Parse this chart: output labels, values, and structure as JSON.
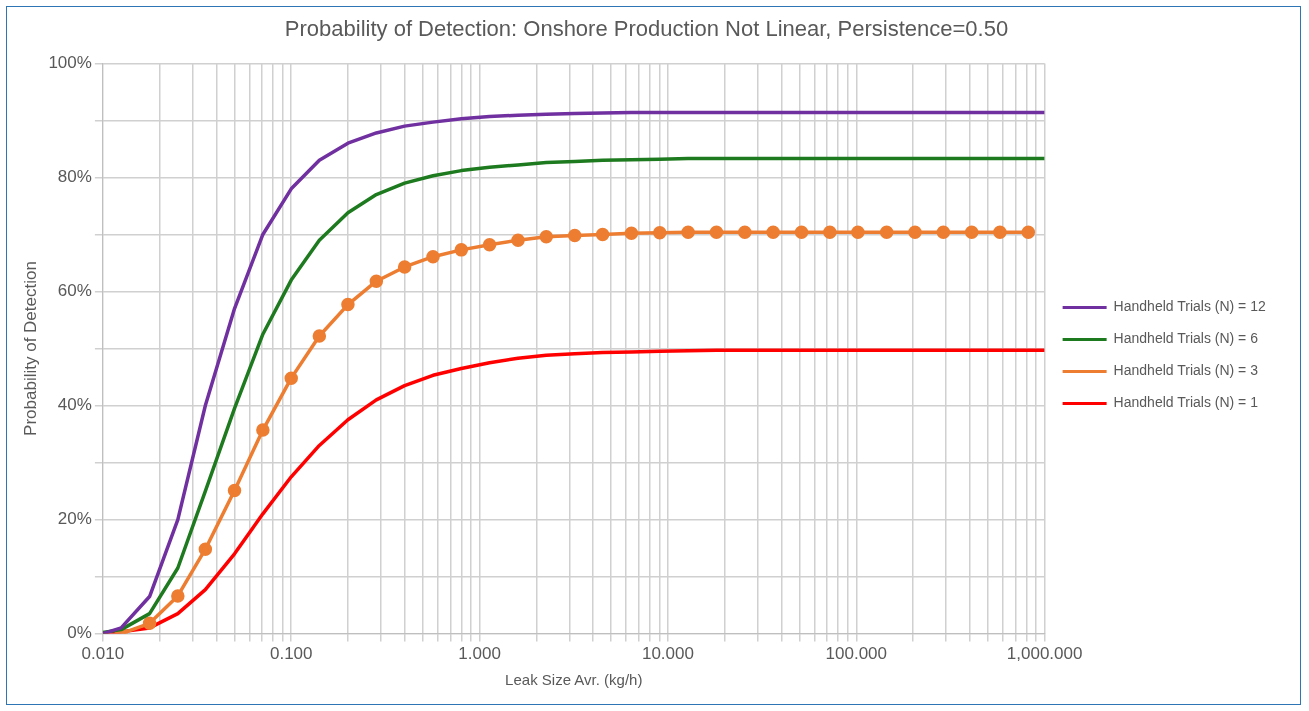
{
  "chart_data": {
    "type": "line",
    "title": "Probability of Detection: Onshore Production Not Linear, Persistence=0.50",
    "xlabel": "Leak Size Avr. (kg/h)",
    "ylabel": "Probability of Detection",
    "x": [
      0.01,
      0.0125,
      0.0177,
      0.025,
      0.035,
      0.05,
      0.0707,
      0.1,
      0.141,
      0.2,
      0.283,
      0.4,
      0.566,
      0.8,
      1.13,
      1.6,
      2.26,
      3.2,
      4.5,
      6.4,
      9.05,
      12.8,
      18.1,
      25.6,
      36.2,
      51.2,
      72.4,
      102,
      145,
      205,
      290,
      410,
      579,
      819,
      1000
    ],
    "series": [
      {
        "name": "Handheld Trials (N) = 12",
        "color": "#7030a0",
        "marker": "none",
        "values": [
          0,
          1,
          6.5,
          20,
          40,
          57,
          70,
          78,
          83,
          86,
          87.8,
          89,
          89.7,
          90.3,
          90.7,
          90.9,
          91.1,
          91.2,
          91.3,
          91.4,
          91.4,
          91.4,
          91.4,
          91.4,
          91.4,
          91.4,
          91.4,
          91.4,
          91.4,
          91.4,
          91.4,
          91.4,
          91.4,
          91.4,
          91.4
        ]
      },
      {
        "name": "Handheld Trials (N) = 6",
        "color": "#1e7a1e",
        "marker": "none",
        "values": [
          0.2,
          0.7,
          3.5,
          11.5,
          25,
          39.5,
          52.5,
          62,
          69,
          73.8,
          77,
          79,
          80.3,
          81.2,
          81.8,
          82.2,
          82.6,
          82.8,
          83,
          83.1,
          83.2,
          83.3,
          83.3,
          83.3,
          83.3,
          83.3,
          83.3,
          83.3,
          83.3,
          83.3,
          83.3,
          83.3,
          83.3,
          83.3,
          83.3
        ]
      },
      {
        "name": "Handheld Trials (N) = 3",
        "color": "#ed7d31",
        "marker": "circle",
        "x": [
          0.0125,
          0.0177,
          0.025,
          0.035,
          0.05,
          0.0707,
          0.1,
          0.141,
          0.2,
          0.283,
          0.4,
          0.566,
          0.8,
          1.13,
          1.6,
          2.26,
          3.2,
          4.5,
          6.4,
          9.05,
          12.8,
          18.1,
          25.6,
          36.2,
          51.2,
          72.4,
          102,
          145,
          205,
          290,
          410,
          579,
          819
        ],
        "values": [
          0,
          1.8,
          6.6,
          14.8,
          25.1,
          35.7,
          44.8,
          52.2,
          57.7,
          61.8,
          64.3,
          66.1,
          67.3,
          68.2,
          69,
          69.6,
          69.8,
          70,
          70.2,
          70.3,
          70.4,
          70.4,
          70.4,
          70.4,
          70.4,
          70.4,
          70.4,
          70.4,
          70.4,
          70.4,
          70.4,
          70.4,
          70.4
        ]
      },
      {
        "name": "Handheld Trials (N) = 1",
        "color": "#ff0000",
        "marker": "none",
        "values": [
          0,
          0.3,
          1,
          3.5,
          7.7,
          14,
          21,
          27.5,
          33,
          37.5,
          41,
          43.5,
          45.3,
          46.5,
          47.5,
          48.3,
          48.8,
          49.1,
          49.3,
          49.4,
          49.5,
          49.6,
          49.7,
          49.7,
          49.7,
          49.7,
          49.7,
          49.7,
          49.7,
          49.7,
          49.7,
          49.7,
          49.7,
          49.7,
          49.7
        ]
      }
    ],
    "log": "x",
    "xlim": [
      0.01,
      1000
    ],
    "xticks": [
      {
        "value": 0.01,
        "label": "0.010"
      },
      {
        "value": 0.02,
        "label": null
      },
      {
        "value": 0.03,
        "label": null
      },
      {
        "value": 0.04,
        "label": null
      },
      {
        "value": 0.05,
        "label": null
      },
      {
        "value": 0.06,
        "label": null
      },
      {
        "value": 0.07,
        "label": null
      },
      {
        "value": 0.08,
        "label": null
      },
      {
        "value": 0.09,
        "label": null
      },
      {
        "value": 0.1,
        "label": "0.100"
      },
      {
        "value": 0.2,
        "label": null
      },
      {
        "value": 0.3,
        "label": null
      },
      {
        "value": 0.4,
        "label": null
      },
      {
        "value": 0.5,
        "label": null
      },
      {
        "value": 0.6,
        "label": null
      },
      {
        "value": 0.7,
        "label": null
      },
      {
        "value": 0.8,
        "label": null
      },
      {
        "value": 0.9,
        "label": null
      },
      {
        "value": 1,
        "label": "1.000"
      },
      {
        "value": 2,
        "label": null
      },
      {
        "value": 3,
        "label": null
      },
      {
        "value": 4,
        "label": null
      },
      {
        "value": 5,
        "label": null
      },
      {
        "value": 6,
        "label": null
      },
      {
        "value": 7,
        "label": null
      },
      {
        "value": 8,
        "label": null
      },
      {
        "value": 9,
        "label": null
      },
      {
        "value": 10,
        "label": "10.000"
      },
      {
        "value": 20,
        "label": null
      },
      {
        "value": 30,
        "label": null
      },
      {
        "value": 40,
        "label": null
      },
      {
        "value": 50,
        "label": null
      },
      {
        "value": 60,
        "label": null
      },
      {
        "value": 70,
        "label": null
      },
      {
        "value": 80,
        "label": null
      },
      {
        "value": 90,
        "label": null
      },
      {
        "value": 100,
        "label": "100.000"
      },
      {
        "value": 200,
        "label": null
      },
      {
        "value": 300,
        "label": null
      },
      {
        "value": 400,
        "label": null
      },
      {
        "value": 500,
        "label": null
      },
      {
        "value": 600,
        "label": null
      },
      {
        "value": 700,
        "label": null
      },
      {
        "value": 800,
        "label": null
      },
      {
        "value": 900,
        "label": null
      },
      {
        "value": 1000,
        "label": "1,000.000"
      }
    ],
    "ylim": [
      0,
      100
    ],
    "yticks": [
      {
        "value": 0,
        "label": "0%"
      },
      {
        "value": 10,
        "label": null
      },
      {
        "value": 20,
        "label": "20%"
      },
      {
        "value": 30,
        "label": null
      },
      {
        "value": 40,
        "label": "40%"
      },
      {
        "value": 50,
        "label": null
      },
      {
        "value": 60,
        "label": "60%"
      },
      {
        "value": 70,
        "label": null
      },
      {
        "value": 80,
        "label": "80%"
      },
      {
        "value": 90,
        "label": null
      },
      {
        "value": 100,
        "label": "100%"
      }
    ],
    "grid": true,
    "legend": "right",
    "line_style": "solid"
  }
}
